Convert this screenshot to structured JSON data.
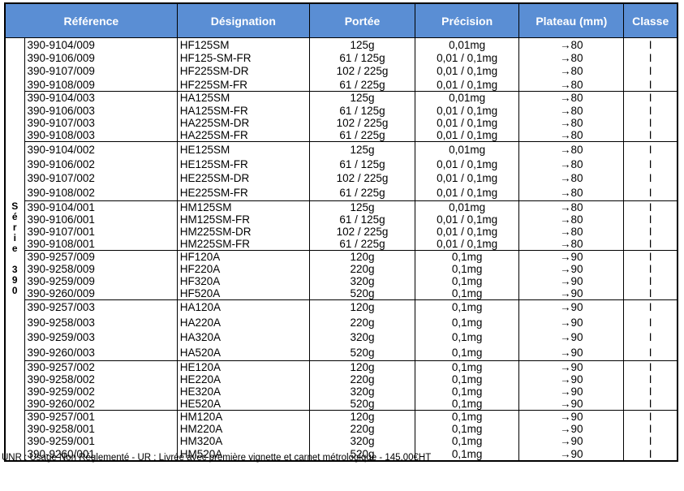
{
  "table": {
    "columns": [
      {
        "key": 0,
        "label": "Référence"
      },
      {
        "key": 1,
        "label": "Désignation"
      },
      {
        "key": 2,
        "label": "Portée"
      },
      {
        "key": 3,
        "label": "Précision"
      },
      {
        "key": 4,
        "label": "Plateau (mm)"
      },
      {
        "key": 5,
        "label": "Classe"
      }
    ],
    "series_label": {
      "text": "Série 390",
      "chars": [
        "S",
        "é",
        "r",
        "i",
        "e",
        "",
        "3",
        "9",
        "0"
      ]
    },
    "groups": [
      {
        "rows": [
          [
            "390-9104/009",
            "HF125SM",
            "125g",
            "0,01mg",
            "→80",
            "I"
          ],
          [
            "390-9106/009",
            "HF125-SM-FR",
            "61 / 125g",
            "0,01 / 0,1mg",
            "→80",
            "I"
          ],
          [
            "390-9107/009",
            "HF225SM-DR",
            "102 / 225g",
            "0,01 / 0,1mg",
            "→80",
            "I"
          ],
          [
            "390-9108/009",
            "HF225SM-FR",
            "61 / 225g",
            "0,01 / 0,1mg",
            "→80",
            "I"
          ]
        ]
      },
      {
        "rows": [
          [
            "390-9104/003",
            "HA125SM",
            "125g",
            "0,01mg",
            "→80",
            "I"
          ],
          [
            "390-9106/003",
            "HA125SM-FR",
            "61 / 125g",
            "0,01 / 0,1mg",
            "→80",
            "I"
          ],
          [
            "390-9107/003",
            "HA225SM-DR",
            "102 / 225g",
            "0,01 / 0,1mg",
            "→80",
            "I"
          ],
          [
            "390-9108/003",
            "HA225SM-FR",
            "61 / 225g",
            "0,01 / 0,1mg",
            "→80",
            "I"
          ]
        ]
      },
      {
        "rows": [
          [
            "390-9104/002",
            "HE125SM",
            "125g",
            "0,01mg",
            "→80",
            "I"
          ],
          [
            "390-9106/002",
            "HE125SM-FR",
            "61 / 125g",
            "0,01 / 0,1mg",
            "→80",
            "I"
          ],
          [
            "390-9107/002",
            "HE225SM-DR",
            "102 / 225g",
            "0,01 / 0,1mg",
            "→80",
            "I"
          ],
          [
            "390-9108/002",
            "HE225SM-FR",
            "61 / 225g",
            "0,01 / 0,1mg",
            "→80",
            "I"
          ]
        ]
      },
      {
        "rows": [
          [
            "390-9104/001",
            "HM125SM",
            "125g",
            "0,01mg",
            "→80",
            "I"
          ],
          [
            "390-9106/001",
            "HM125SM-FR",
            "61 / 125g",
            "0,01 / 0,1mg",
            "→80",
            "I"
          ],
          [
            "390-9107/001",
            "HM225SM-DR",
            "102 / 225g",
            "0,01 / 0,1mg",
            "→80",
            "I"
          ],
          [
            "390-9108/001",
            "HM225SM-FR",
            "61 / 225g",
            "0,01 / 0,1mg",
            "→80",
            "I"
          ]
        ]
      },
      {
        "rows": [
          [
            "390-9257/009",
            "HF120A",
            "120g",
            "0,1mg",
            "→90",
            "I"
          ],
          [
            "390-9258/009",
            "HF220A",
            "220g",
            "0,1mg",
            "→90",
            "I"
          ],
          [
            "390-9259/009",
            "HF320A",
            "320g",
            "0,1mg",
            "→90",
            "I"
          ],
          [
            "390-9260/009",
            "HF520A",
            "520g",
            "0,1mg",
            "→90",
            "I"
          ]
        ]
      },
      {
        "rows": [
          [
            "390-9257/003",
            "HA120A",
            "120g",
            "0,1mg",
            "→90",
            "I"
          ],
          [
            "390-9258/003",
            "HA220A",
            "220g",
            "0,1mg",
            "→90",
            "I"
          ],
          [
            "390-9259/003",
            "HA320A",
            "320g",
            "0,1mg",
            "→90",
            "I"
          ],
          [
            "390-9260/003",
            "HA520A",
            "520g",
            "0,1mg",
            "→90",
            "I"
          ]
        ]
      },
      {
        "rows": [
          [
            "390-9257/002",
            "HE120A",
            "120g",
            "0,1mg",
            "→90",
            "I"
          ],
          [
            "390-9258/002",
            "HE220A",
            "220g",
            "0,1mg",
            "→90",
            "I"
          ],
          [
            "390-9259/002",
            "HE320A",
            "320g",
            "0,1mg",
            "→90",
            "I"
          ],
          [
            "390-9260/002",
            "HE520A",
            "520g",
            "0,1mg",
            "→90",
            "I"
          ]
        ]
      },
      {
        "rows": [
          [
            "390-9257/001",
            "HM120A",
            "120g",
            "0,1mg",
            "→90",
            "I"
          ],
          [
            "390-9258/001",
            "HM220A",
            "220g",
            "0,1mg",
            "→90",
            "I"
          ],
          [
            "390-9259/001",
            "HM320A",
            "320g",
            "0,1mg",
            "→90",
            "I"
          ],
          [
            "390-9260/001",
            "HM520A",
            "520g",
            "0,1mg",
            "→90",
            "I"
          ]
        ]
      }
    ]
  },
  "footer": {
    "text": "UNR : Usage Non Réglementé - UR : Livrée avec première vignette et carnet métrologique - 145,00€HT"
  },
  "colors": {
    "header_bg": "#5a8ed4",
    "header_text": "#ffffff",
    "border": "#000000"
  }
}
